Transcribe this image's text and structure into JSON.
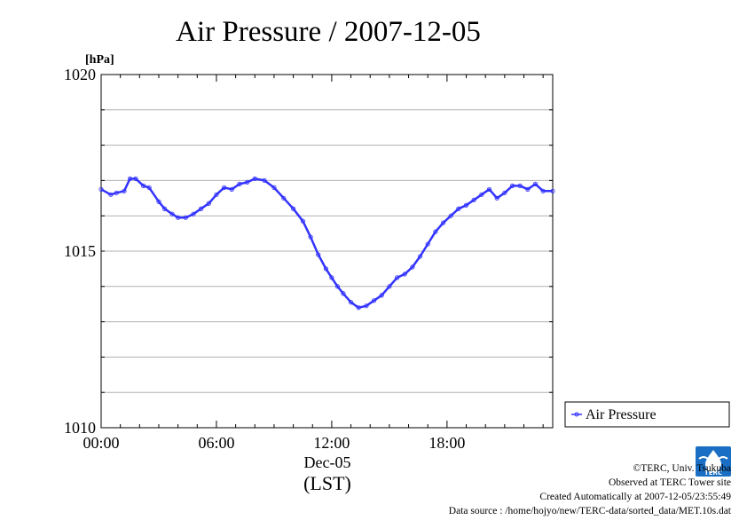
{
  "title": "Air Pressure / 2007-12-05",
  "y_unit": "[hPa]",
  "x_date_label": "Dec-05",
  "x_zone_label": "(LST)",
  "legend_label": "Air Pressure",
  "credits": {
    "copyright": "©TERC, Univ. Tsukuba",
    "observed": "Observed at TERC Tower site",
    "created": "Created Automatically at 2007-12-05/23:55:49",
    "source": "Data source : /home/hojyo/new/TERC-data/sorted_data/MET.10s.dat"
  },
  "logo_text": "TERC",
  "colors": {
    "series": "#3333ff",
    "grid": "#b0b0b0",
    "logo": "#1a6fc4"
  },
  "chart_data": {
    "type": "line",
    "title": "Air Pressure / 2007-12-05",
    "ylabel": "[hPa]",
    "xlabel": "(LST)",
    "ylim": [
      1010,
      1020
    ],
    "xlim": [
      0,
      23.5
    ],
    "yticks": [
      1010,
      1015,
      1020
    ],
    "ytick_labels": [
      "1010",
      "1015",
      "1020"
    ],
    "xticks": [
      0,
      6,
      12,
      18
    ],
    "xtick_labels": [
      "00:00",
      "06:00",
      "12:00",
      "18:00"
    ],
    "grid": true,
    "legend": "right-bottom-outside",
    "series": [
      {
        "name": "Air Pressure",
        "x": [
          0,
          0.5,
          0.8,
          1.2,
          1.5,
          1.8,
          2.2,
          2.5,
          3.0,
          3.3,
          3.7,
          4.0,
          4.4,
          4.8,
          5.2,
          5.6,
          6.0,
          6.4,
          6.8,
          7.2,
          7.6,
          8.0,
          8.5,
          9.0,
          9.5,
          10.0,
          10.5,
          10.9,
          11.3,
          11.7,
          12.0,
          12.3,
          12.6,
          13.0,
          13.4,
          13.8,
          14.2,
          14.6,
          15.0,
          15.4,
          15.8,
          16.2,
          16.6,
          17.0,
          17.4,
          17.8,
          18.2,
          18.6,
          19.0,
          19.4,
          19.8,
          20.2,
          20.6,
          21.0,
          21.4,
          21.8,
          22.2,
          22.6,
          23.0,
          23.5
        ],
        "y": [
          1016.75,
          1016.6,
          1016.65,
          1016.7,
          1017.05,
          1017.05,
          1016.85,
          1016.8,
          1016.4,
          1016.2,
          1016.05,
          1015.95,
          1015.95,
          1016.05,
          1016.2,
          1016.35,
          1016.6,
          1016.8,
          1016.75,
          1016.9,
          1016.95,
          1017.05,
          1017.0,
          1016.8,
          1016.5,
          1016.2,
          1015.85,
          1015.4,
          1014.9,
          1014.5,
          1014.25,
          1014.0,
          1013.8,
          1013.55,
          1013.4,
          1013.45,
          1013.6,
          1013.75,
          1014.0,
          1014.25,
          1014.35,
          1014.55,
          1014.85,
          1015.2,
          1015.55,
          1015.8,
          1016.0,
          1016.2,
          1016.3,
          1016.45,
          1016.6,
          1016.75,
          1016.5,
          1016.65,
          1016.85,
          1016.85,
          1016.75,
          1016.9,
          1016.7,
          1016.7
        ]
      }
    ]
  }
}
